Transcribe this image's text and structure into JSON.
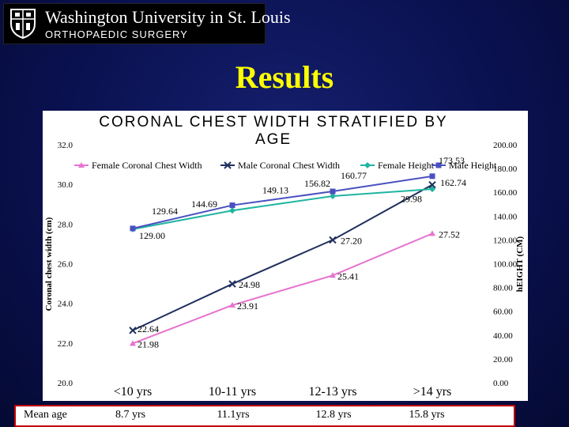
{
  "logo": {
    "line1": "Washington University in St. Louis",
    "line2": "ORTHOPAEDIC SURGERY"
  },
  "slide_title": "Results",
  "mean_age": {
    "label": "Mean age",
    "values": [
      "8.7 yrs",
      "11.1yrs",
      "12.8 yrs",
      "15.8 yrs"
    ]
  },
  "colors": {
    "female_width": "#e673cf",
    "male_width": "#1f2f5e",
    "female_height": "#1fb5a0",
    "male_height": "#4a50c0",
    "title_yellow": "#ffff00",
    "border_red": "#c00000"
  },
  "chart_data": {
    "type": "line",
    "title": "CORONAL CHEST WIDTH STRATIFIED BY AGE",
    "categories": [
      "<10 yrs",
      "10-11 yrs",
      "12-13 yrs",
      ">14 yrs"
    ],
    "ylabel": "Coronal chest width (cm)",
    "y2label": "hEIGHT (CM)",
    "ylim": [
      20,
      32
    ],
    "y2lim": [
      0,
      200
    ],
    "yticks": [
      "20.0",
      "22.0",
      "24.0",
      "26.0",
      "28.0",
      "30.0",
      "32.0"
    ],
    "y2ticks": [
      "0.00",
      "20.00",
      "40.00",
      "60.00",
      "80.00",
      "100.00",
      "120.00",
      "140.00",
      "160.00",
      "180.00",
      "200.00"
    ],
    "legend_position": "top",
    "series": [
      {
        "name": "Female Coronal Chest Width",
        "axis": "left",
        "marker": "triangle",
        "values": [
          21.98,
          23.91,
          25.41,
          27.52
        ],
        "labels": [
          "21.98",
          "23.91",
          "25.41",
          "27.52"
        ]
      },
      {
        "name": "Male Coronal Chest Width",
        "axis": "left",
        "marker": "x",
        "values": [
          22.64,
          24.98,
          27.2,
          29.98
        ],
        "labels": [
          "22.64",
          "24.98",
          "27.20",
          "29.98"
        ]
      },
      {
        "name": "Female Height",
        "axis": "right",
        "marker": "diamond",
        "values": [
          129.0,
          144.69,
          156.82,
          162.74
        ],
        "labels": [
          "129.00",
          "144.69",
          "156.82",
          "162.74"
        ]
      },
      {
        "name": "Male Height",
        "axis": "right",
        "marker": "square",
        "values": [
          129.64,
          149.13,
          160.77,
          173.53
        ],
        "labels": [
          "129.64",
          "149.13",
          "160.77",
          "173.53"
        ]
      }
    ]
  }
}
